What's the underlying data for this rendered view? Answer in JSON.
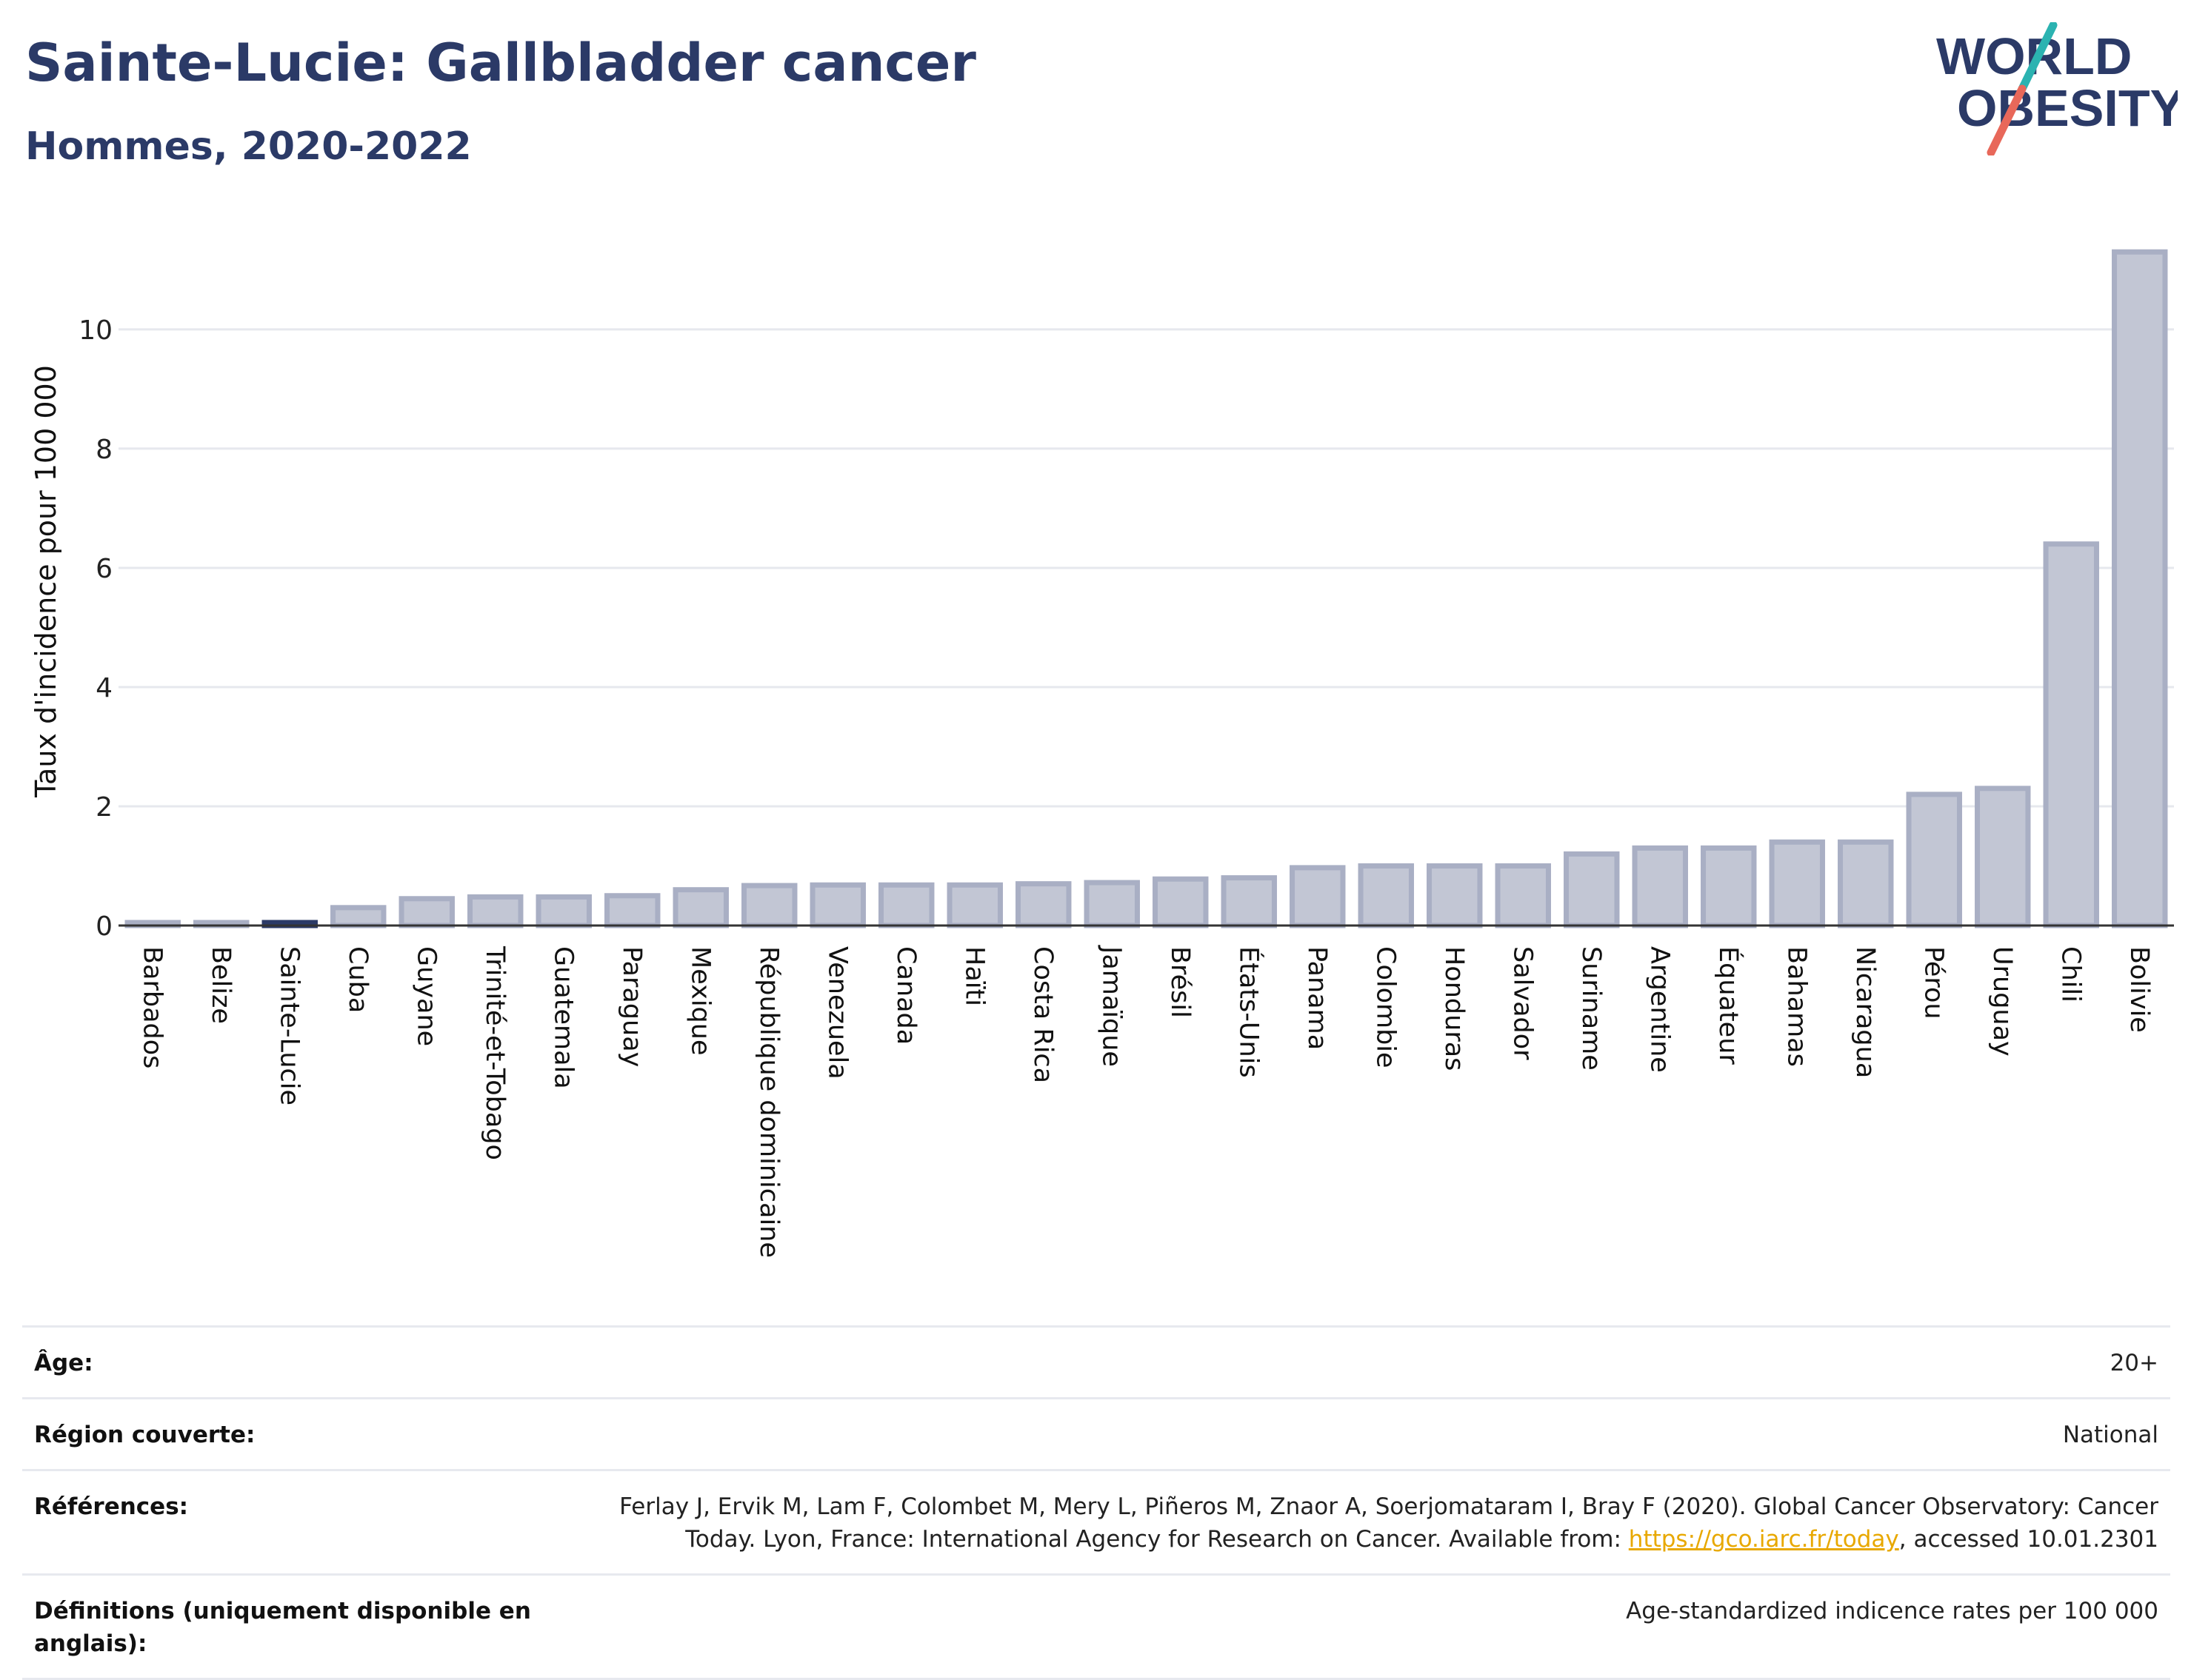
{
  "header": {
    "title": "Sainte-Lucie: Gallbladder cancer",
    "subtitle": "Hommes, 2020-2022"
  },
  "logo": {
    "line1": "WORLD",
    "line2": "OBESITY",
    "colors": {
      "text": "#2b3a67",
      "slash_teal": "#2bb3b1",
      "slash_coral": "#e8685a"
    }
  },
  "colors": {
    "bar_fill": "#c2c6d4",
    "bar_stroke": "#a9afc4",
    "highlight_bar": "#2b3a67",
    "grid": "#e6e8ee",
    "axis": "#333333"
  },
  "chart_data": {
    "type": "bar",
    "ylabel": "Taux d'incidence pour 100 000",
    "ylim": [
      0,
      11.8
    ],
    "yticks": [
      0,
      2,
      4,
      6,
      8,
      10
    ],
    "grid": true,
    "highlight": "Sainte-Lucie",
    "categories": [
      "Barbados",
      "Belize",
      "Sainte-Lucie",
      "Cuba",
      "Guyane",
      "Trinité-et-Tobago",
      "Guatemala",
      "Paraguay",
      "Mexique",
      "République dominicaine",
      "Venezuela",
      "Canada",
      "Haïti",
      "Costa Rica",
      "Jamaïque",
      "Brésil",
      "États-Unis",
      "Panama",
      "Colombie",
      "Honduras",
      "Salvador",
      "Suriname",
      "Argentine",
      "Équateur",
      "Bahamas",
      "Nicaragua",
      "Pérou",
      "Uruguay",
      "Chili",
      "Bolivie"
    ],
    "values": [
      0.05,
      0.05,
      0.05,
      0.3,
      0.45,
      0.48,
      0.48,
      0.5,
      0.6,
      0.67,
      0.68,
      0.68,
      0.68,
      0.7,
      0.72,
      0.78,
      0.8,
      0.97,
      1.0,
      1.0,
      1.0,
      1.2,
      1.3,
      1.3,
      1.4,
      1.4,
      2.2,
      2.3,
      6.4,
      11.3
    ]
  },
  "meta": [
    {
      "label": "Âge:",
      "value": "20+"
    },
    {
      "label": "Région couverte:",
      "value": "National"
    },
    {
      "label": "Références:",
      "value_line1": "Ferlay J, Ervik M, Lam F, Colombet M, Mery L, Piñeros M, Znaor A, Soerjomataram I, Bray F (2020). Global Cancer Observatory: Cancer",
      "value_line2_prefix": "Today. Lyon, France: International Agency for Research on Cancer. Available from: ",
      "link_text": "https://gco.iarc.fr/today",
      "value_line2_suffix": ", accessed 10.01.2301"
    },
    {
      "label": "Définitions (uniquement disponible en anglais):",
      "value": "Age-standardized indicence rates per 100 000"
    }
  ]
}
